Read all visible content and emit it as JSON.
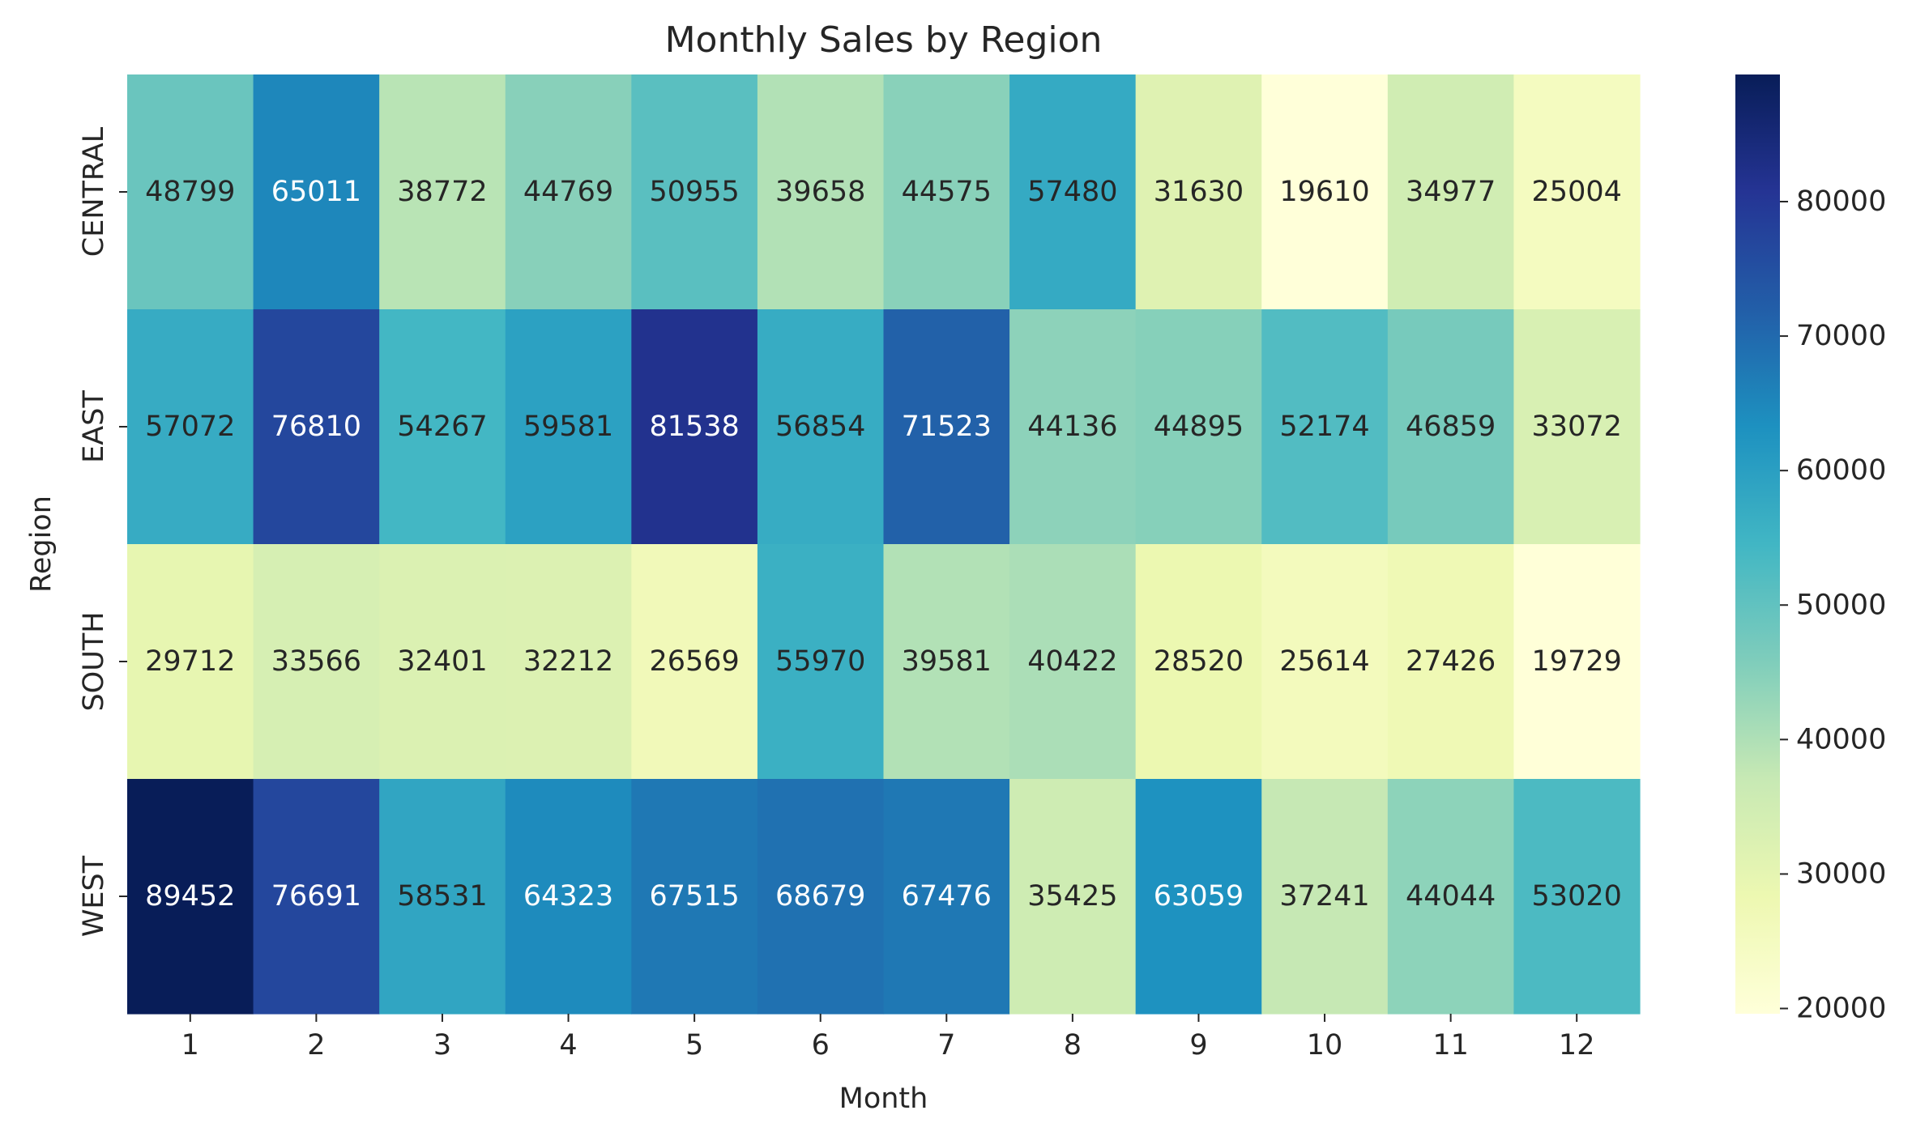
{
  "chart_data": {
    "type": "heatmap",
    "title": "Monthly Sales by Region",
    "xlabel": "Month",
    "ylabel": "Region",
    "x_categories": [
      "1",
      "2",
      "3",
      "4",
      "5",
      "6",
      "7",
      "8",
      "9",
      "10",
      "11",
      "12"
    ],
    "y_categories": [
      "CENTRAL",
      "EAST",
      "SOUTH",
      "WEST"
    ],
    "values": [
      [
        48799,
        65011,
        38772,
        44769,
        50955,
        39658,
        44575,
        57480,
        31630,
        19610,
        34977,
        25004
      ],
      [
        57072,
        76810,
        54267,
        59581,
        81538,
        56854,
        71523,
        44136,
        44895,
        52174,
        46859,
        33072
      ],
      [
        29712,
        33566,
        32401,
        32212,
        26569,
        55970,
        39581,
        40422,
        28520,
        25614,
        27426,
        19729
      ],
      [
        89452,
        76691,
        58531,
        64323,
        67515,
        68679,
        67476,
        35425,
        63059,
        37241,
        44044,
        53020
      ]
    ],
    "colormap": "YlGnBu",
    "colorbar": {
      "vmin": 19610,
      "vmax": 89452,
      "ticks": [
        20000,
        30000,
        40000,
        50000,
        60000,
        70000,
        80000
      ],
      "tick_labels": [
        "20000",
        "30000",
        "40000",
        "50000",
        "60000",
        "70000",
        "80000"
      ]
    },
    "annotations": true,
    "grid": false,
    "legend": "colorbar-right"
  }
}
